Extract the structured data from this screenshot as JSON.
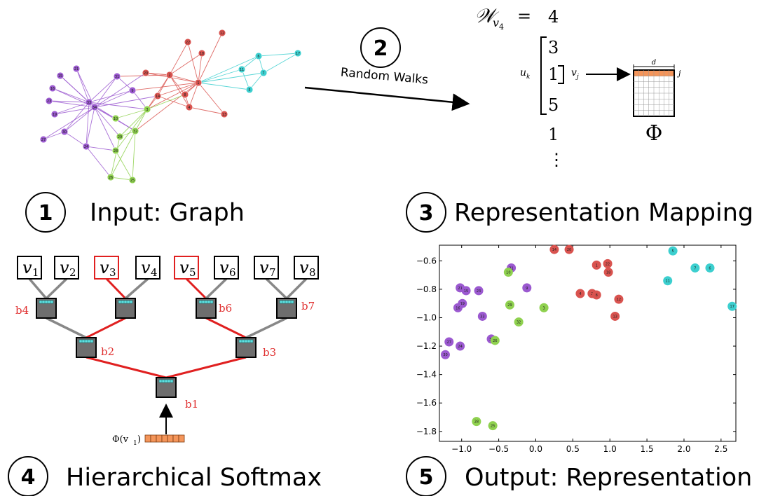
{
  "steps": [
    {
      "num": "1",
      "label": "Input: Graph"
    },
    {
      "num": "2",
      "label": "Random Walks"
    },
    {
      "num": "3",
      "label": "Representation Mapping"
    },
    {
      "num": "4",
      "label": "Hierarchical Softmax"
    },
    {
      "num": "5",
      "label": "Output: Representation"
    }
  ],
  "colors": {
    "purple": "#9b59d0",
    "red": "#d9534f",
    "green": "#8fd14f",
    "cyan": "#3ccfcf",
    "orange": "#f4955a",
    "treeRed": "#e02020"
  },
  "graph_nodes": [
    {
      "id": "12",
      "c": "red"
    },
    {
      "id": "22",
      "c": "red"
    },
    {
      "id": "18",
      "c": "red"
    },
    {
      "id": "20",
      "c": "red"
    },
    {
      "id": "2",
      "c": "red"
    },
    {
      "id": "1",
      "c": "red"
    },
    {
      "id": "14",
      "c": "red"
    },
    {
      "id": "8",
      "c": "red"
    },
    {
      "id": "4",
      "c": "red"
    },
    {
      "id": "13",
      "c": "red"
    },
    {
      "id": "6",
      "c": "cyan"
    },
    {
      "id": "17",
      "c": "cyan"
    },
    {
      "id": "11",
      "c": "cyan"
    },
    {
      "id": "7",
      "c": "cyan"
    },
    {
      "id": "5",
      "c": "cyan"
    },
    {
      "id": "21",
      "c": "purple"
    },
    {
      "id": "15",
      "c": "purple"
    },
    {
      "id": "16",
      "c": "purple"
    },
    {
      "id": "23",
      "c": "purple"
    },
    {
      "id": "19",
      "c": "purple"
    },
    {
      "id": "33",
      "c": "purple"
    },
    {
      "id": "34",
      "c": "purple"
    },
    {
      "id": "30",
      "c": "purple"
    },
    {
      "id": "27",
      "c": "purple"
    },
    {
      "id": "24",
      "c": "purple"
    },
    {
      "id": "31",
      "c": "purple"
    },
    {
      "id": "9",
      "c": "purple"
    },
    {
      "id": "10",
      "c": "green"
    },
    {
      "id": "3",
      "c": "green"
    },
    {
      "id": "29",
      "c": "green"
    },
    {
      "id": "32",
      "c": "green"
    },
    {
      "id": "28",
      "c": "green"
    },
    {
      "id": "26",
      "c": "green"
    },
    {
      "id": "25",
      "c": "green"
    }
  ],
  "walk": {
    "W": "𝒲",
    "sub_v": "v",
    "sub_num": "4",
    "eq": "=",
    "seq": [
      "4",
      "3",
      "1",
      "5",
      "1",
      "⋮"
    ],
    "u_k": "u",
    "u_sub": "k",
    "v_j": "v",
    "v_sub": "j",
    "d_label": "d",
    "j_label": "j",
    "phi": "Φ"
  },
  "tree": {
    "leaves": [
      {
        "label": "v",
        "sub": "1",
        "path": false
      },
      {
        "label": "v",
        "sub": "2",
        "path": false
      },
      {
        "label": "v",
        "sub": "3",
        "path": true
      },
      {
        "label": "v",
        "sub": "4",
        "path": false
      },
      {
        "label": "v",
        "sub": "5",
        "path": true
      },
      {
        "label": "v",
        "sub": "6",
        "path": false
      },
      {
        "label": "v",
        "sub": "7",
        "path": false
      },
      {
        "label": "v",
        "sub": "8",
        "path": false
      }
    ],
    "node_labels": [
      "b4",
      "b6",
      "b7",
      "b2",
      "b3",
      "b1"
    ],
    "input_label": "Φ(v",
    "input_sub": "1",
    "input_close": ")"
  },
  "chart_data": {
    "type": "scatter",
    "x_ticks": [
      "−1.0",
      "−0.5",
      "0.0",
      "0.5",
      "1.0",
      "1.5",
      "2.0",
      "2.5"
    ],
    "y_ticks": [
      "−0.6",
      "−0.8",
      "−1.0",
      "−1.2",
      "−1.4",
      "−1.6",
      "−1.8"
    ],
    "xlim": [
      -1.3,
      2.7
    ],
    "ylim": [
      -1.87,
      -0.49
    ],
    "points": [
      {
        "id": "14",
        "x": 0.25,
        "y": -0.52,
        "c": "red"
      },
      {
        "id": "20",
        "x": 0.45,
        "y": -0.52,
        "c": "red"
      },
      {
        "id": "1",
        "x": 0.82,
        "y": -0.63,
        "c": "red"
      },
      {
        "id": "22",
        "x": 0.97,
        "y": -0.62,
        "c": "red"
      },
      {
        "id": "18",
        "x": 0.98,
        "y": -0.68,
        "c": "red"
      },
      {
        "id": "4",
        "x": 0.6,
        "y": -0.83,
        "c": "red"
      },
      {
        "id": "2",
        "x": 0.76,
        "y": -0.83,
        "c": "red"
      },
      {
        "id": "8",
        "x": 0.82,
        "y": -0.84,
        "c": "red"
      },
      {
        "id": "12",
        "x": 1.12,
        "y": -0.87,
        "c": "red"
      },
      {
        "id": "13",
        "x": 1.07,
        "y": -0.99,
        "c": "red"
      },
      {
        "id": "5",
        "x": 1.85,
        "y": -0.53,
        "c": "cyan"
      },
      {
        "id": "7",
        "x": 2.15,
        "y": -0.65,
        "c": "cyan"
      },
      {
        "id": "6",
        "x": 2.35,
        "y": -0.65,
        "c": "cyan"
      },
      {
        "id": "11",
        "x": 1.78,
        "y": -0.74,
        "c": "cyan"
      },
      {
        "id": "17",
        "x": 2.65,
        "y": -0.92,
        "c": "cyan"
      },
      {
        "id": "31",
        "x": -0.33,
        "y": -0.65,
        "c": "purple"
      },
      {
        "id": "9",
        "x": -0.12,
        "y": -0.79,
        "c": "purple"
      },
      {
        "id": "21",
        "x": -1.02,
        "y": -0.79,
        "c": "purple"
      },
      {
        "id": "15",
        "x": -0.94,
        "y": -0.81,
        "c": "purple"
      },
      {
        "id": "23",
        "x": -0.77,
        "y": -0.81,
        "c": "purple"
      },
      {
        "id": "19",
        "x": -0.99,
        "y": -0.9,
        "c": "purple"
      },
      {
        "id": "16",
        "x": -1.05,
        "y": -0.93,
        "c": "purple"
      },
      {
        "id": "33",
        "x": -0.72,
        "y": -0.99,
        "c": "purple"
      },
      {
        "id": "34",
        "x": -0.6,
        "y": -1.15,
        "c": "purple"
      },
      {
        "id": "27",
        "x": -1.17,
        "y": -1.17,
        "c": "purple"
      },
      {
        "id": "24",
        "x": -1.02,
        "y": -1.2,
        "c": "purple"
      },
      {
        "id": "30",
        "x": -1.22,
        "y": -1.26,
        "c": "purple"
      },
      {
        "id": "10",
        "x": -0.37,
        "y": -0.68,
        "c": "green"
      },
      {
        "id": "29",
        "x": -0.35,
        "y": -0.91,
        "c": "green"
      },
      {
        "id": "3",
        "x": 0.11,
        "y": -0.93,
        "c": "green"
      },
      {
        "id": "32",
        "x": -0.23,
        "y": -1.03,
        "c": "green"
      },
      {
        "id": "26",
        "x": -0.55,
        "y": -1.16,
        "c": "green"
      },
      {
        "id": "28",
        "x": -0.8,
        "y": -1.73,
        "c": "green"
      },
      {
        "id": "25",
        "x": -0.58,
        "y": -1.76,
        "c": "green"
      }
    ]
  }
}
